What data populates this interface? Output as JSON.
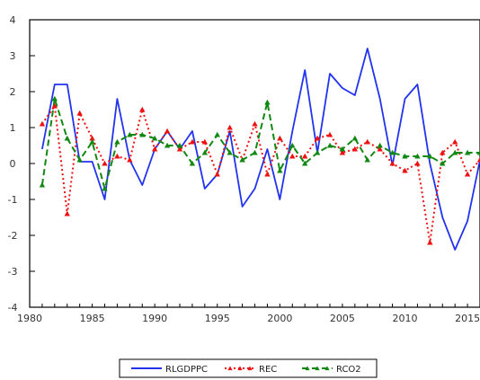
{
  "chart_data": {
    "type": "line",
    "title": "",
    "xlabel": "",
    "ylabel": "",
    "x": [
      1981,
      1982,
      1983,
      1984,
      1985,
      1986,
      1987,
      1988,
      1989,
      1990,
      1991,
      1992,
      1993,
      1994,
      1995,
      1996,
      1997,
      1998,
      1999,
      2000,
      2001,
      2002,
      2003,
      2004,
      2005,
      2006,
      2007,
      2008,
      2009,
      2010,
      2011,
      2012,
      2013,
      2014,
      2015,
      2016
    ],
    "xlim": [
      1980,
      2016
    ],
    "ylim": [
      -4,
      4
    ],
    "x_ticks": [
      {
        "value": 1980,
        "label": "1980"
      },
      {
        "value": 1985,
        "label": "1985"
      },
      {
        "value": 1990,
        "label": "1990"
      },
      {
        "value": 1995,
        "label": "1995"
      },
      {
        "value": 2000,
        "label": "2000"
      },
      {
        "value": 2005,
        "label": "2005"
      },
      {
        "value": 2010,
        "label": "2010"
      },
      {
        "value": 2015,
        "label": "2015"
      }
    ],
    "y_ticks": [
      {
        "value": 4,
        "label": "4"
      },
      {
        "value": 3,
        "label": "3"
      },
      {
        "value": 2,
        "label": "2"
      },
      {
        "value": 1,
        "label": "1"
      },
      {
        "value": 0,
        "label": "0"
      },
      {
        "value": -1,
        "label": "-1"
      },
      {
        "value": -2,
        "label": "-2"
      },
      {
        "value": -3,
        "label": "-3"
      },
      {
        "value": -4,
        "label": "-4"
      }
    ],
    "grid": false,
    "legend_position": "bottom-center",
    "series": [
      {
        "name": "RLGDPPC",
        "color": "#2233ee",
        "style": "solid",
        "marker": "none",
        "values": [
          0.4,
          2.2,
          2.2,
          0.05,
          0.05,
          -1.0,
          1.8,
          0.1,
          -0.6,
          0.4,
          0.9,
          0.4,
          0.9,
          -0.7,
          -0.3,
          0.9,
          -1.2,
          -0.7,
          0.4,
          -1.0,
          0.9,
          2.6,
          0.3,
          2.5,
          2.1,
          1.9,
          3.2,
          1.8,
          -0.05,
          1.8,
          2.2,
          0.0,
          -1.5,
          -2.4,
          -1.6,
          0.1
        ]
      },
      {
        "name": "REC",
        "color": "#ee1111",
        "style": "dotted",
        "marker": "triangle",
        "values": [
          1.1,
          1.6,
          -1.4,
          1.4,
          0.7,
          0.0,
          0.2,
          0.1,
          1.5,
          0.4,
          0.9,
          0.4,
          0.6,
          0.6,
          -0.3,
          1.0,
          0.1,
          1.1,
          -0.3,
          0.7,
          0.2,
          0.2,
          0.7,
          0.8,
          0.3,
          0.4,
          0.6,
          0.4,
          0.0,
          -0.2,
          0.0,
          -2.2,
          0.3,
          0.6,
          -0.3,
          0.1
        ]
      },
      {
        "name": "RCO2",
        "color": "#118811",
        "style": "dashed",
        "marker": "triangle",
        "values": [
          -0.6,
          1.8,
          0.7,
          0.1,
          0.6,
          -0.7,
          0.6,
          0.8,
          0.8,
          0.7,
          0.5,
          0.5,
          0.0,
          0.3,
          0.8,
          0.3,
          0.1,
          0.3,
          1.7,
          -0.2,
          0.5,
          0.0,
          0.3,
          0.5,
          0.4,
          0.7,
          0.1,
          0.5,
          0.3,
          0.2,
          0.2,
          0.2,
          0.0,
          0.3,
          0.3,
          0.3
        ]
      }
    ]
  }
}
